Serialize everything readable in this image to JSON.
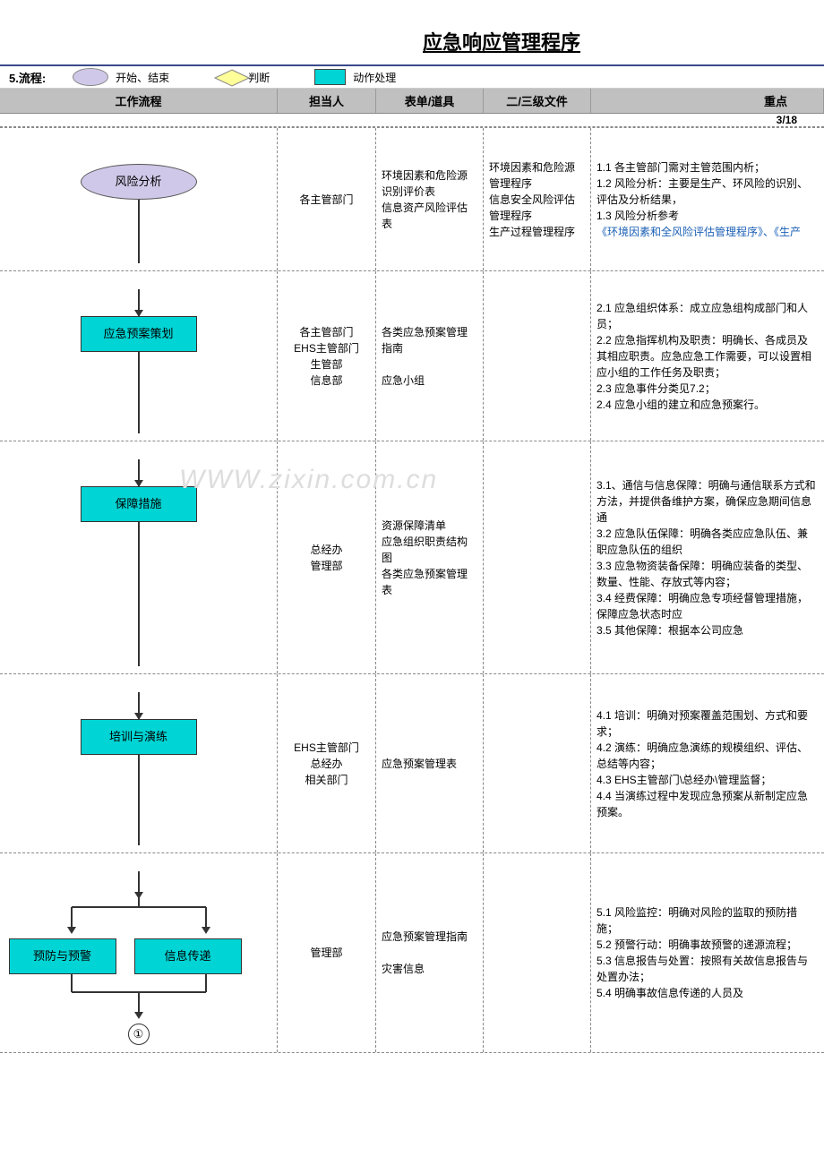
{
  "title": "应急响应管理程序",
  "section_label": "5.流程:",
  "legend": {
    "start_end": "开始、结束",
    "decision": "判断",
    "action": "动作处理"
  },
  "legend_colors": {
    "ellipse_bg": "#d0c8e8",
    "diamond_bg": "#ffff99",
    "rect_bg": "#00d4d4"
  },
  "columns": {
    "flow": "工作流程",
    "owner": "担当人",
    "forms": "表单/道具",
    "docs": "二/三级文件",
    "notes": "重点"
  },
  "page_num": "3/18",
  "rows": [
    {
      "node": {
        "type": "ellipse",
        "label": "风险分析"
      },
      "owner": "各主管部门",
      "forms": "环境因素和危险源识别评价表\n信息资产风险评估表",
      "docs": "环境因素和危险源管理程序\n信息安全风险评估管理程序\n生产过程管理程序",
      "notes": "1.1 各主管部门需对主管范围内析；\n1.2 风险分析：主要是生产、环风险的识别、评估及分析结果，\n1.3 风险分析参考",
      "notes_link": "《环境因素和全风险评估管理程序》、《生产"
    },
    {
      "node": {
        "type": "process",
        "label": "应急预案策划"
      },
      "owner": "各主管部门\nEHS主管部门\n生管部\n信息部",
      "forms": "各类应急预案管理指南\n\n应急小组",
      "docs": "",
      "notes": "2.1 应急组织体系：成立应急组构成部门和人员；\n2.2 应急指挥机构及职责：明确长、各成员及其相应职责。应急应急工作需要，可以设置相应小组的工作任务及职责；\n2.3 应急事件分类见7.2；\n2.4 应急小组的建立和应急预案行。"
    },
    {
      "node": {
        "type": "process",
        "label": "保障措施"
      },
      "owner": "总经办\n管理部",
      "forms": "资源保障清单\n应急组织职责结构图\n各类应急预案管理表",
      "docs": "",
      "notes": "3.1、通信与信息保障：明确与通信联系方式和方法，并提供备维护方案，确保应急期间信息通\n3.2 应急队伍保障：明确各类应应急队伍、兼职应急队伍的组织\n3.3 应急物资装备保障：明确应装备的类型、数量、性能、存放式等内容；\n3.4 经费保障：明确应急专项经督管理措施，保障应急状态时应\n3.5 其他保障：根据本公司应急",
      "watermark": "WWW.zixin.com.cn"
    },
    {
      "node": {
        "type": "process",
        "label": "培训与演练"
      },
      "owner": "EHS主管部门\n总经办\n相关部门",
      "forms": "应急预案管理表",
      "docs": "",
      "notes": "4.1 培训：明确对预案覆盖范围划、方式和要求；\n4.2 演练：明确应急演练的规模组织、评估、总结等内容；\n4.3 EHS主管部门\\总经办\\管理监督；\n4.4 当演练过程中发现应急预案从新制定应急预案。"
    },
    {
      "node": {
        "type": "split",
        "labels": [
          "预防与预警",
          "信息传递"
        ]
      },
      "owner": "管理部",
      "forms": "应急预案管理指南\n\n灾害信息",
      "docs": "",
      "notes": "5.1 风险监控：明确对风险的监取的预防措施；\n5.2 预警行动：明确事故预警的递源流程；\n5.3 信息报告与处置：按照有关故信息报告与处置办法；\n5.4 明确事故信息传递的人员及",
      "connector": "①"
    }
  ]
}
